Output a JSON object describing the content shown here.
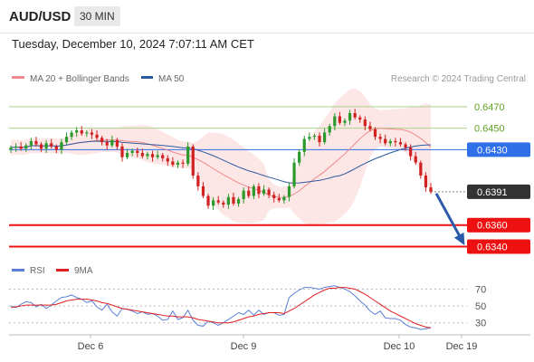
{
  "header": {
    "symbol": "AUD/USD",
    "timeframe": "30 MIN",
    "datetime": "Tuesday, December 10, 2024 7:07:11 AM CET"
  },
  "legend": {
    "ma20": "MA 20 + Bollinger Bands",
    "ma50": "MA 50",
    "credit": "Research © 2024 Trading Central"
  },
  "rsi_legend": {
    "rsi": "RSI",
    "ma": "9MA"
  },
  "colors": {
    "up": "#2b9a2b",
    "down": "#d02020",
    "ma20": "#f08a8a",
    "ma50": "#2c5aa0",
    "bollinger": "#fde2e2",
    "resistance": "#a9d38a",
    "pivot": "#2f6fe8",
    "support": "#ee1111",
    "current": "#333333",
    "rsi": "#5b7fd6",
    "rsi_ma": "#e02020"
  },
  "chart_data": [
    {
      "type": "candlestick",
      "x_ticks": [
        "Dec 6",
        "Dec 9",
        "Dec 10",
        "Dec 19"
      ],
      "ylim": [
        0.6332,
        0.6485
      ],
      "levels": [
        {
          "label": "0.6470",
          "value": 0.647,
          "kind": "resistance"
        },
        {
          "label": "0.6450",
          "value": 0.645,
          "kind": "resistance"
        },
        {
          "label": "0.6430",
          "value": 0.643,
          "kind": "pivot"
        },
        {
          "label": "0.6391",
          "value": 0.6391,
          "kind": "current"
        },
        {
          "label": "0.6360",
          "value": 0.636,
          "kind": "support"
        },
        {
          "label": "0.6340",
          "value": 0.634,
          "kind": "support"
        }
      ],
      "close": [
        0.6432,
        0.6433,
        0.6431,
        0.6434,
        0.6438,
        0.6435,
        0.6431,
        0.6436,
        0.6433,
        0.643,
        0.6437,
        0.6442,
        0.6446,
        0.6448,
        0.6445,
        0.6446,
        0.6444,
        0.6441,
        0.6437,
        0.6434,
        0.6439,
        0.6433,
        0.6423,
        0.6427,
        0.6429,
        0.6427,
        0.6424,
        0.6426,
        0.6423,
        0.6425,
        0.6422,
        0.6419,
        0.6416,
        0.6418,
        0.6417,
        0.6433,
        0.6406,
        0.6396,
        0.6387,
        0.6378,
        0.6383,
        0.6381,
        0.6379,
        0.6386,
        0.638,
        0.6384,
        0.6392,
        0.6387,
        0.6396,
        0.6389,
        0.6393,
        0.6388,
        0.6385,
        0.6383,
        0.6386,
        0.6396,
        0.6418,
        0.6428,
        0.644,
        0.6442,
        0.6443,
        0.6437,
        0.6446,
        0.6452,
        0.6461,
        0.6455,
        0.6457,
        0.6464,
        0.646,
        0.6458,
        0.6452,
        0.6449,
        0.6442,
        0.644,
        0.6436,
        0.6438,
        0.6437,
        0.6435,
        0.6432,
        0.6424,
        0.6418,
        0.6406,
        0.6395,
        0.6391
      ],
      "projection": {
        "from": 0.6391,
        "to": 0.634
      }
    },
    {
      "type": "line",
      "title": "RSI",
      "yticks": [
        70,
        50,
        30
      ],
      "series": [
        {
          "name": "RSI",
          "values": [
            50,
            48,
            52,
            55,
            54,
            49,
            52,
            47,
            51,
            56,
            60,
            61,
            63,
            60,
            58,
            54,
            56,
            49,
            45,
            52,
            43,
            38,
            47,
            46,
            44,
            41,
            43,
            40,
            41,
            38,
            33,
            34,
            44,
            34,
            36,
            45,
            33,
            27,
            26,
            32,
            30,
            27,
            30,
            34,
            38,
            42,
            40,
            45,
            39,
            45,
            40,
            42,
            42,
            39,
            40,
            60,
            65,
            69,
            72,
            72,
            71,
            70,
            72,
            73,
            74,
            72,
            70,
            67,
            62,
            56,
            51,
            44,
            40,
            44,
            36,
            35,
            35,
            33,
            28,
            25,
            24,
            22,
            23,
            24
          ]
        },
        {
          "name": "9MA",
          "values": [
            48,
            49,
            50,
            51,
            51,
            51,
            51,
            51,
            51,
            52,
            54,
            56,
            57,
            58,
            58,
            58,
            57,
            56,
            54,
            53,
            51,
            49,
            47,
            46,
            45,
            44,
            43,
            42,
            41,
            40,
            39,
            38,
            38,
            37,
            37,
            37,
            36,
            34,
            33,
            32,
            31,
            30,
            30,
            30,
            31,
            33,
            35,
            37,
            38,
            40,
            41,
            42,
            42,
            42,
            41,
            44,
            47,
            51,
            55,
            59,
            63,
            66,
            69,
            71,
            71,
            72,
            72,
            71,
            70,
            67,
            64,
            60,
            56,
            52,
            48,
            44,
            41,
            38,
            35,
            32,
            29,
            27,
            25,
            24
          ]
        }
      ]
    }
  ]
}
